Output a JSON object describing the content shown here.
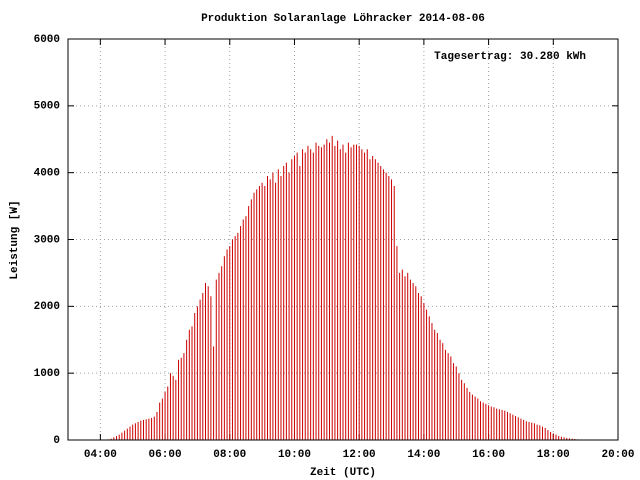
{
  "chart_data": {
    "type": "impulse",
    "title": "Produktion Solaranlage Löhracker 2014-08-06",
    "annotation": "Tagesertrag: 30.280 kWh",
    "x_label": "Zeit (UTC)",
    "y_label": "Leistung [W]",
    "color": "#cc0000",
    "grid": true,
    "xlim": [
      180,
      1200
    ],
    "ylim": [
      0,
      6000
    ],
    "xticks": [
      {
        "value": 240,
        "label": "04:00"
      },
      {
        "value": 360,
        "label": "06:00"
      },
      {
        "value": 480,
        "label": "08:00"
      },
      {
        "value": 600,
        "label": "10:00"
      },
      {
        "value": 720,
        "label": "12:00"
      },
      {
        "value": 840,
        "label": "14:00"
      },
      {
        "value": 960,
        "label": "16:00"
      },
      {
        "value": 1080,
        "label": "18:00"
      },
      {
        "value": 1200,
        "label": "20:00"
      }
    ],
    "yticks": [
      0,
      1000,
      2000,
      3000,
      4000,
      5000,
      6000
    ],
    "x": [
      255,
      260,
      265,
      270,
      275,
      280,
      285,
      290,
      295,
      300,
      305,
      310,
      315,
      320,
      325,
      330,
      335,
      340,
      345,
      350,
      355,
      360,
      365,
      370,
      375,
      380,
      385,
      390,
      395,
      400,
      405,
      410,
      415,
      420,
      425,
      430,
      435,
      440,
      445,
      450,
      455,
      460,
      465,
      470,
      475,
      480,
      485,
      490,
      495,
      500,
      505,
      510,
      515,
      520,
      525,
      530,
      535,
      540,
      545,
      550,
      555,
      560,
      565,
      570,
      575,
      580,
      585,
      590,
      595,
      600,
      605,
      610,
      615,
      620,
      625,
      630,
      635,
      640,
      645,
      650,
      655,
      660,
      665,
      670,
      675,
      680,
      685,
      690,
      695,
      700,
      705,
      710,
      715,
      720,
      725,
      730,
      735,
      740,
      745,
      750,
      755,
      760,
      765,
      770,
      775,
      780,
      785,
      790,
      795,
      800,
      805,
      810,
      815,
      820,
      825,
      830,
      835,
      840,
      845,
      850,
      855,
      860,
      865,
      870,
      875,
      880,
      885,
      890,
      895,
      900,
      905,
      910,
      915,
      920,
      925,
      930,
      935,
      940,
      945,
      950,
      955,
      960,
      965,
      970,
      975,
      980,
      985,
      990,
      995,
      1000,
      1005,
      1010,
      1015,
      1020,
      1025,
      1030,
      1035,
      1040,
      1045,
      1050,
      1055,
      1060,
      1065,
      1070,
      1075,
      1080,
      1085,
      1090,
      1095,
      1100,
      1105,
      1110,
      1115,
      1120,
      1125,
      1130,
      1135
    ],
    "values": [
      10,
      20,
      40,
      60,
      80,
      110,
      140,
      170,
      200,
      230,
      250,
      270,
      290,
      300,
      310,
      320,
      330,
      350,
      420,
      560,
      620,
      720,
      800,
      1000,
      960,
      900,
      1200,
      1230,
      1300,
      1500,
      1650,
      1700,
      1900,
      2000,
      2100,
      2200,
      2350,
      2300,
      2150,
      1400,
      2400,
      2500,
      2600,
      2750,
      2850,
      2900,
      3000,
      3050,
      3100,
      3200,
      3300,
      3350,
      3500,
      3600,
      3700,
      3750,
      3800,
      3850,
      3800,
      3950,
      3900,
      4000,
      3850,
      4050,
      3950,
      4100,
      4150,
      4000,
      4200,
      4250,
      4300,
      4100,
      4350,
      4300,
      4400,
      4350,
      4300,
      4450,
      4400,
      4380,
      4420,
      4500,
      4450,
      4550,
      4400,
      4480,
      4350,
      4420,
      4300,
      4450,
      4380,
      4420,
      4420,
      4400,
      4350,
      4300,
      4350,
      4200,
      4250,
      4200,
      4150,
      4100,
      4050,
      4000,
      3950,
      3900,
      3800,
      2900,
      2500,
      2550,
      2450,
      2500,
      2400,
      2350,
      2300,
      2200,
      2150,
      2050,
      1950,
      1850,
      1750,
      1650,
      1600,
      1500,
      1450,
      1350,
      1300,
      1250,
      1150,
      1100,
      1000,
      900,
      850,
      780,
      720,
      680,
      650,
      620,
      580,
      560,
      540,
      520,
      500,
      490,
      470,
      460,
      450,
      440,
      420,
      400,
      380,
      360,
      340,
      320,
      300,
      280,
      270,
      260,
      250,
      230,
      220,
      200,
      180,
      150,
      120,
      100,
      80,
      60,
      50,
      40,
      30,
      25,
      20,
      15,
      10,
      5,
      2
    ]
  }
}
